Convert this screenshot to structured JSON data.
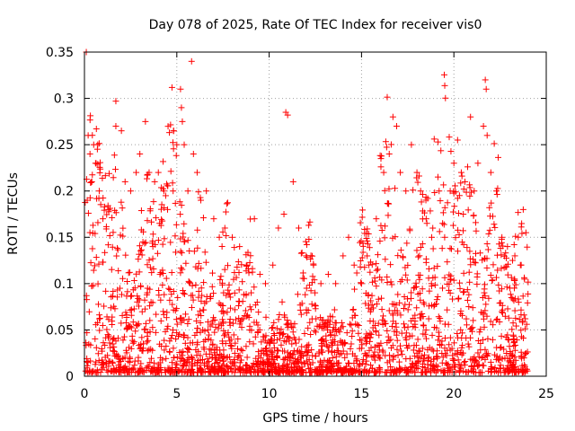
{
  "chart_data": {
    "type": "scatter",
    "title": "Day 078 of 2025, Rate Of TEC Index for receiver vis0",
    "xlabel": "GPS time / hours",
    "ylabel": "ROTI / TECUs",
    "xlim": [
      0,
      25
    ],
    "ylim": [
      0,
      0.35
    ],
    "xticks": [
      0,
      5,
      10,
      15,
      20,
      25
    ],
    "xtick_labels": [
      "0",
      "5",
      "10",
      "15",
      "20",
      "25"
    ],
    "yticks": [
      0,
      0.05,
      0.1,
      0.15,
      0.2,
      0.25,
      0.3,
      0.35
    ],
    "ytick_labels": [
      "0",
      "0.05",
      "0.1",
      "0.15",
      "0.2",
      "0.25",
      "0.3",
      "0.35"
    ],
    "grid": true,
    "marker": "plus",
    "color": "#ff0000",
    "series": [
      {
        "name": "ROTI",
        "points": [
          [
            0.1,
            0.35
          ],
          [
            0.2,
            0.26
          ],
          [
            0.3,
            0.24
          ],
          [
            0.5,
            0.25
          ],
          [
            0.6,
            0.23
          ],
          [
            0.15,
            0.19
          ],
          [
            0.4,
            0.21
          ],
          [
            0.8,
            0.2
          ],
          [
            1.0,
            0.17
          ],
          [
            1.3,
            0.18
          ],
          [
            1.7,
            0.297
          ],
          [
            1.7,
            0.27
          ],
          [
            2.0,
            0.265
          ],
          [
            2.2,
            0.21
          ],
          [
            2.5,
            0.2
          ],
          [
            2.8,
            0.22
          ],
          [
            3.0,
            0.24
          ],
          [
            3.3,
            0.275
          ],
          [
            3.5,
            0.22
          ],
          [
            3.8,
            0.21
          ],
          [
            4.0,
            0.22
          ],
          [
            4.3,
            0.2
          ],
          [
            4.5,
            0.18
          ],
          [
            4.8,
            0.2
          ],
          [
            5.0,
            0.25
          ],
          [
            5.2,
            0.31
          ],
          [
            5.25,
            0.29
          ],
          [
            5.3,
            0.275
          ],
          [
            5.4,
            0.25
          ],
          [
            5.6,
            0.2
          ],
          [
            5.8,
            0.34
          ],
          [
            5.9,
            0.24
          ],
          [
            6.1,
            0.22
          ],
          [
            6.3,
            0.19
          ],
          [
            6.6,
            0.2
          ],
          [
            7.0,
            0.17
          ],
          [
            7.3,
            0.15
          ],
          [
            7.6,
            0.16
          ],
          [
            8.0,
            0.15
          ],
          [
            8.4,
            0.14
          ],
          [
            8.8,
            0.12
          ],
          [
            9.2,
            0.17
          ],
          [
            9.5,
            0.11
          ],
          [
            9.8,
            0.1
          ],
          [
            10.2,
            0.12
          ],
          [
            10.5,
            0.16
          ],
          [
            10.8,
            0.175
          ],
          [
            10.9,
            0.285
          ],
          [
            11.0,
            0.282
          ],
          [
            11.3,
            0.21
          ],
          [
            11.6,
            0.16
          ],
          [
            12.0,
            0.13
          ],
          [
            12.4,
            0.12
          ],
          [
            12.8,
            0.1
          ],
          [
            13.2,
            0.11
          ],
          [
            13.6,
            0.1
          ],
          [
            14.0,
            0.13
          ],
          [
            14.3,
            0.15
          ],
          [
            14.6,
            0.12
          ],
          [
            15.0,
            0.1
          ],
          [
            15.4,
            0.12
          ],
          [
            15.8,
            0.17
          ],
          [
            16.2,
            0.22
          ],
          [
            16.5,
            0.24
          ],
          [
            16.7,
            0.28
          ],
          [
            16.9,
            0.27
          ],
          [
            17.1,
            0.22
          ],
          [
            17.4,
            0.2
          ],
          [
            17.7,
            0.25
          ],
          [
            18.0,
            0.22
          ],
          [
            18.2,
            0.2
          ],
          [
            18.5,
            0.17
          ],
          [
            18.8,
            0.15
          ],
          [
            19.2,
            0.2
          ],
          [
            19.5,
            0.15
          ],
          [
            19.8,
            0.2
          ],
          [
            20.0,
            0.23
          ],
          [
            20.2,
            0.255
          ],
          [
            20.4,
            0.22
          ],
          [
            20.6,
            0.21
          ],
          [
            20.9,
            0.28
          ],
          [
            21.1,
            0.2
          ],
          [
            21.3,
            0.23
          ],
          [
            21.6,
            0.27
          ],
          [
            21.7,
            0.32
          ],
          [
            21.75,
            0.31
          ],
          [
            21.8,
            0.26
          ],
          [
            22.0,
            0.22
          ],
          [
            22.3,
            0.2
          ],
          [
            22.6,
            0.15
          ],
          [
            22.9,
            0.14
          ],
          [
            23.3,
            0.13
          ],
          [
            23.6,
            0.12
          ],
          [
            23.9,
            0.155
          ]
        ]
      }
    ]
  }
}
